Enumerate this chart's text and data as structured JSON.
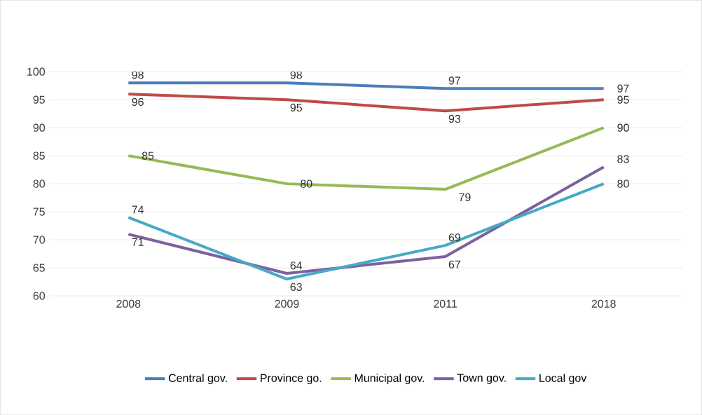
{
  "chart_data": {
    "type": "line",
    "categories": [
      "2008",
      "2009",
      "2011",
      "2018"
    ],
    "series": [
      {
        "name": "Central gov.",
        "color": "#4a7ebb",
        "values": [
          98,
          98,
          97,
          97
        ]
      },
      {
        "name": "Province go.",
        "color": "#be4b48",
        "values": [
          96,
          95,
          93,
          95
        ]
      },
      {
        "name": "Municipal gov.",
        "color": "#98b954",
        "values": [
          85,
          80,
          79,
          90
        ]
      },
      {
        "name": "Town gov.",
        "color": "#7d60a0",
        "values": [
          71,
          64,
          67,
          83
        ]
      },
      {
        "name": "Local gov",
        "color": "#46aac5",
        "values": [
          74,
          63,
          69,
          80
        ]
      }
    ],
    "ylim": [
      60,
      100
    ],
    "yticks": [
      60,
      65,
      70,
      75,
      80,
      85,
      90,
      95,
      100
    ],
    "grid": "y",
    "legend": "bottom",
    "data_labels": true
  }
}
